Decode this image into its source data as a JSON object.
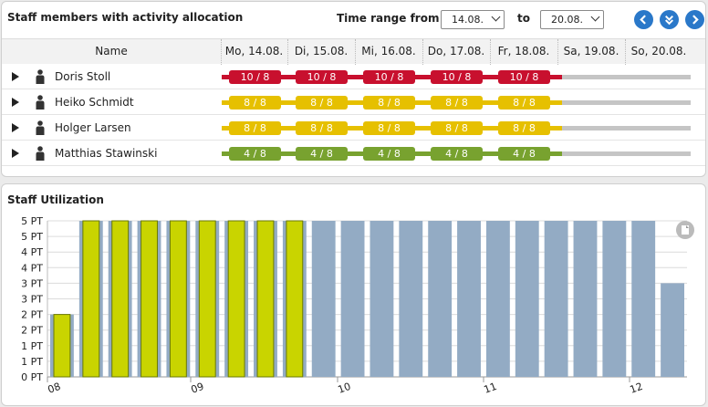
{
  "top_panel": {
    "title": "Staff members with activity allocation",
    "time_range_label": "Time range from",
    "from_value": "14.08.",
    "to_label": "to",
    "to_value": "20.08.",
    "nav_icons": [
      "previous-icon",
      "collapse-icon",
      "next-icon"
    ]
  },
  "grid": {
    "name_header": "Name",
    "days": [
      "Mo, 14.08.",
      "Di, 15.08.",
      "Mi, 16.08.",
      "Do, 17.08.",
      "Fr, 18.08.",
      "Sa, 19.08.",
      "So, 20.08."
    ],
    "rows": [
      {
        "name": "Doris Stoll",
        "color": "#c8102e",
        "allocations": [
          "10 / 8",
          "10 / 8",
          "10 / 8",
          "10 / 8",
          "10 / 8"
        ]
      },
      {
        "name": "Heiko Schmidt",
        "color": "#e6c000",
        "allocations": [
          "8 / 8",
          "8 / 8",
          "8 / 8",
          "8 / 8",
          "8 / 8"
        ]
      },
      {
        "name": "Holger Larsen",
        "color": "#e6c000",
        "allocations": [
          "8 / 8",
          "8 / 8",
          "8 / 8",
          "8 / 8",
          "8 / 8"
        ]
      },
      {
        "name": "Matthias Stawinski",
        "color": "#78a22f",
        "allocations": [
          "4 / 8",
          "4 / 8",
          "4 / 8",
          "4 / 8",
          "4 / 8"
        ]
      }
    ]
  },
  "bottom_panel": {
    "title": "Staff Utilization"
  },
  "chart_data": {
    "type": "bar",
    "ytick_labels": [
      "0 PT",
      "1 PT",
      "1 PT",
      "2 PT",
      "2 PT",
      "3 PT",
      "3 PT",
      "4 PT",
      "4 PT",
      "5 PT",
      "5 PT"
    ],
    "ylim": [
      0,
      5
    ],
    "xtick_labels": [
      "08",
      "09",
      "10",
      "11",
      "12"
    ],
    "capacity": [
      2,
      5,
      5,
      5,
      5,
      5,
      5,
      5,
      5,
      5,
      5,
      5,
      5,
      5,
      5,
      5,
      5,
      5,
      5,
      5,
      5,
      3
    ],
    "utilization": [
      2,
      5,
      5,
      5,
      5,
      5,
      5,
      5,
      5,
      null,
      null,
      null,
      null,
      null,
      null,
      null,
      null,
      null,
      null,
      null,
      null,
      null
    ],
    "colors": {
      "capacity": "#93abc4",
      "utilization": "#c9d400",
      "utilization_border": "#6b7a00"
    }
  }
}
